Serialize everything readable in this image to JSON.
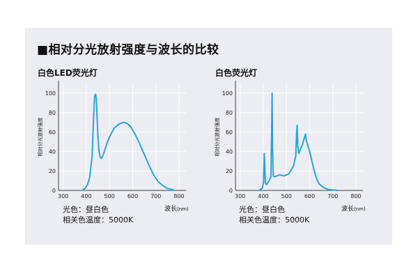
{
  "heading": "■相对分光放射强度与波长的比较",
  "colors": {
    "curve": "#29a3dc",
    "axis": "#444444",
    "grid": "#ffffff",
    "panel": "#ececf3"
  },
  "chart_data": [
    {
      "type": "line",
      "title": "白色LED荧光灯",
      "ylabel": "相对分光放射强度",
      "xlabel": "波长",
      "xunit": "(nm)",
      "xlim": [
        280,
        830
      ],
      "ylim": [
        0,
        110
      ],
      "xticks": [
        "300",
        "400",
        "500",
        "600",
        "700",
        "800"
      ],
      "yticks": [
        "0",
        "20",
        "40",
        "60",
        "80",
        "100"
      ],
      "grid": true,
      "series": [
        {
          "x": [
            380,
            395,
            405,
            415,
            425,
            432,
            436,
            440,
            443,
            446,
            450,
            455,
            460,
            465,
            470,
            475,
            480,
            490,
            500,
            520,
            540,
            560,
            575,
            590,
            610,
            630,
            650,
            670,
            690,
            710,
            730,
            750,
            770,
            780
          ],
          "y": [
            0,
            2,
            6,
            14,
            35,
            80,
            97,
            99,
            95,
            78,
            55,
            40,
            34,
            33,
            35,
            38,
            42,
            49,
            55,
            64,
            68,
            70,
            69,
            66,
            58,
            48,
            37,
            26,
            16,
            9,
            5,
            2,
            1,
            0
          ]
        }
      ],
      "info_lines": [
        "光色：昼白色",
        "相关色温度：5000K"
      ]
    },
    {
      "type": "line",
      "title": "白色荧光灯",
      "ylabel": "相对分光放射强度",
      "xlabel": "波长",
      "xunit": "(nm)",
      "xlim": [
        280,
        830
      ],
      "ylim": [
        0,
        110
      ],
      "xticks": [
        "300",
        "400",
        "500",
        "600",
        "700",
        "800"
      ],
      "yticks": [
        "0",
        "20",
        "40",
        "60",
        "80",
        "100"
      ],
      "grid": true,
      "series": [
        {
          "x": [
            380,
            395,
            401,
            404,
            406,
            409,
            414,
            425,
            433,
            436,
            438,
            440,
            443,
            450,
            470,
            490,
            510,
            530,
            540,
            544,
            546,
            549,
            553,
            560,
            570,
            578,
            582,
            585,
            590,
            600,
            610,
            620,
            630,
            640,
            660,
            680,
            700,
            720
          ],
          "y": [
            0,
            2,
            8,
            38,
            30,
            8,
            6,
            10,
            14,
            60,
            100,
            45,
            15,
            14,
            16,
            15,
            17,
            25,
            35,
            60,
            67,
            45,
            38,
            42,
            48,
            55,
            58,
            52,
            48,
            40,
            30,
            20,
            12,
            7,
            3,
            1,
            0.5,
            0
          ]
        }
      ],
      "info_lines": [
        "光色：昼白色",
        "相关色温度：5000K"
      ]
    }
  ]
}
